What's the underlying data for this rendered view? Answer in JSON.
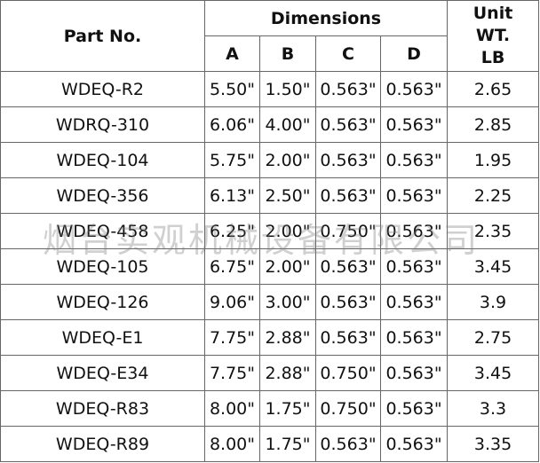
{
  "table": {
    "header": {
      "part_no": "Part No.",
      "dimensions": "Dimensions",
      "columns": [
        "A",
        "B",
        "C",
        "D"
      ],
      "unit_wt": [
        "Unit",
        "WT.",
        "LB"
      ]
    },
    "rows": [
      [
        "WDEQ-R2",
        "5.50\"",
        "1.50\"",
        "0.563\"",
        "0.563\"",
        "2.65"
      ],
      [
        "WDRQ-310",
        "6.06\"",
        "4.00\"",
        "0.563\"",
        "0.563\"",
        "2.85"
      ],
      [
        "WDEQ-104",
        "5.75\"",
        "2.00\"",
        "0.563\"",
        "0.563\"",
        "1.95"
      ],
      [
        "WDEQ-356",
        "6.13\"",
        "2.50\"",
        "0.563\"",
        "0.563\"",
        "2.25"
      ],
      [
        "WDEQ-458",
        "6.25\"",
        "2.00\"",
        "0.750\"",
        "0.563\"",
        "2.35"
      ],
      [
        "WDEQ-105",
        "6.75\"",
        "2.00\"",
        "0.563\"",
        "0.563\"",
        "3.45"
      ],
      [
        "WDEQ-126",
        "9.06\"",
        "3.00\"",
        "0.563\"",
        "0.563\"",
        "3.9"
      ],
      [
        "WDEQ-E1",
        "7.75\"",
        "2.88\"",
        "0.563\"",
        "0.563\"",
        "2.75"
      ],
      [
        "WDEQ-E34",
        "7.75\"",
        "2.88\"",
        "0.750\"",
        "0.563\"",
        "3.45"
      ],
      [
        "WDEQ-R83",
        "8.00\"",
        "1.75\"",
        "0.750\"",
        "0.563\"",
        "3.3"
      ],
      [
        "WDEQ-R89",
        "8.00\"",
        "1.75\"",
        "0.563\"",
        "0.563\"",
        "3.35"
      ]
    ]
  },
  "watermark": "烟台实观机械设备有限公司"
}
